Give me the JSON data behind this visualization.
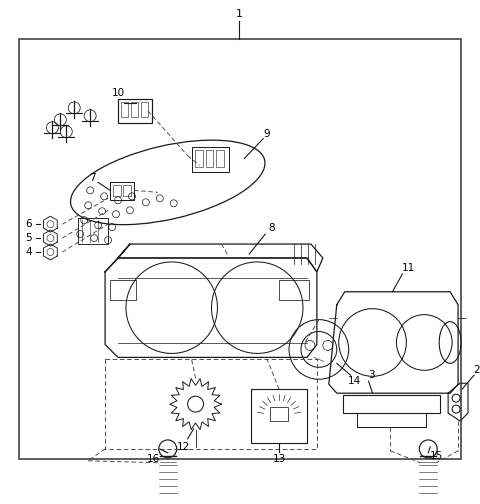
{
  "bg_color": "#ffffff",
  "line_color": "#1a1a1a",
  "dash_color": "#444444",
  "text_color": "#000000",
  "border_color": "#444444",
  "figsize": [
    4.8,
    5.04
  ],
  "dpi": 100
}
